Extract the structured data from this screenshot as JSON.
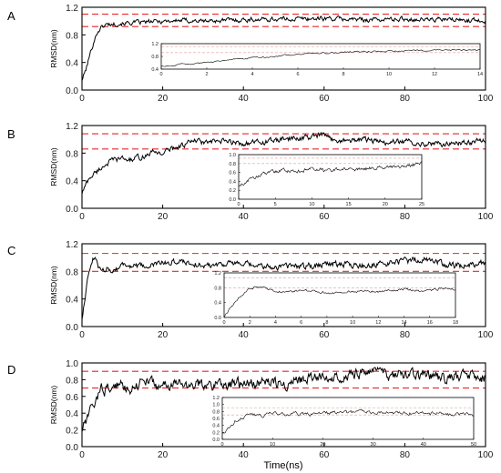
{
  "figure": {
    "x_axis_label": "Time(ns)",
    "colors": {
      "trace": "#000000",
      "threshold": "#e8262a",
      "inset_threshold": "#e79a9a",
      "axis": "#000000",
      "tick_label": "#1a1a1a"
    }
  },
  "chart_data": [
    {
      "panel": "A",
      "type": "line",
      "xlabel": "",
      "ylabel": "RMSD(nm)",
      "xlim": [
        0,
        100
      ],
      "ylim": [
        0,
        1.2
      ],
      "x_ticks": [
        "0",
        "20",
        "40",
        "60",
        "80",
        "100"
      ],
      "y_ticks": [
        "0.0",
        "0.4",
        "0.8",
        "1.2"
      ],
      "thresholds": [
        1.1,
        0.92
      ],
      "trace": {
        "x": [
          0,
          1,
          2,
          3,
          4,
          5,
          6,
          8,
          10,
          15,
          20,
          25,
          30,
          40,
          50,
          60,
          70,
          80,
          90,
          100
        ],
        "y": [
          0.15,
          0.3,
          0.52,
          0.72,
          0.86,
          0.92,
          0.95,
          0.96,
          0.97,
          0.98,
          1.0,
          1.01,
          1.0,
          1.02,
          1.03,
          1.04,
          1.02,
          1.03,
          1.02,
          1.01
        ],
        "noise": 0.025
      },
      "inset": {
        "xlim": [
          0,
          14
        ],
        "ylim": [
          0.4,
          1.2
        ],
        "x_ticks": [
          "0",
          "2",
          "4",
          "6",
          "8",
          "10",
          "12",
          "14"
        ],
        "y_ticks": [
          "0.4",
          "0.8",
          "1.2"
        ],
        "thresholds": [
          1.1,
          0.92
        ],
        "trace": {
          "x": [
            0,
            1,
            2,
            3,
            4,
            5,
            6,
            7,
            8,
            9,
            10,
            11,
            12,
            13,
            14
          ],
          "y": [
            0.48,
            0.55,
            0.6,
            0.68,
            0.75,
            0.8,
            0.87,
            0.9,
            0.92,
            0.95,
            0.96,
            0.98,
            0.99,
            1.0,
            1.0
          ],
          "noise": 0.02
        }
      }
    },
    {
      "panel": "B",
      "type": "line",
      "xlabel": "",
      "ylabel": "RMSD(nm)",
      "xlim": [
        0,
        100
      ],
      "ylim": [
        0,
        1.2
      ],
      "x_ticks": [
        "0",
        "20",
        "40",
        "60",
        "80",
        "100"
      ],
      "y_ticks": [
        "0.0",
        "0.4",
        "0.8",
        "1.2"
      ],
      "thresholds": [
        1.08,
        0.86
      ],
      "trace": {
        "x": [
          0,
          1,
          2,
          4,
          6,
          8,
          10,
          12,
          15,
          18,
          20,
          22,
          25,
          28,
          30,
          35,
          40,
          45,
          50,
          55,
          60,
          62,
          65,
          70,
          75,
          80,
          85,
          90,
          95,
          100
        ],
        "y": [
          0.22,
          0.35,
          0.45,
          0.55,
          0.65,
          0.7,
          0.72,
          0.7,
          0.75,
          0.82,
          0.8,
          0.86,
          0.92,
          0.98,
          0.95,
          0.97,
          0.94,
          0.96,
          1.0,
          1.02,
          1.06,
          1.0,
          0.98,
          1.0,
          0.95,
          0.97,
          0.94,
          0.93,
          0.96,
          0.98
        ],
        "noise": 0.03
      },
      "inset": {
        "xlim": [
          0,
          25
        ],
        "ylim": [
          0,
          1.0
        ],
        "x_ticks": [
          "0",
          "5",
          "10",
          "15",
          "20",
          "25"
        ],
        "y_ticks": [
          "0.0",
          "0.2",
          "0.4",
          "0.6",
          "0.8",
          "1.0"
        ],
        "thresholds": [
          0.92,
          0.8
        ],
        "trace": {
          "x": [
            0,
            1,
            2,
            3,
            4,
            5,
            6,
            8,
            10,
            12,
            14,
            15,
            16,
            18,
            20,
            22,
            24,
            25
          ],
          "y": [
            0.28,
            0.4,
            0.48,
            0.55,
            0.6,
            0.62,
            0.65,
            0.62,
            0.68,
            0.64,
            0.66,
            0.68,
            0.67,
            0.7,
            0.72,
            0.74,
            0.78,
            0.82
          ],
          "noise": 0.03
        }
      }
    },
    {
      "panel": "C",
      "type": "line",
      "xlabel": "",
      "ylabel": "RMSD(nm)",
      "xlim": [
        0,
        100
      ],
      "ylim": [
        0,
        1.2
      ],
      "x_ticks": [
        "0",
        "20",
        "40",
        "60",
        "80",
        "100"
      ],
      "y_ticks": [
        "0.0",
        "0.4",
        "0.8",
        "1.2"
      ],
      "thresholds": [
        1.06,
        0.8
      ],
      "trace": {
        "x": [
          0,
          1,
          2,
          3,
          4,
          5,
          6,
          8,
          10,
          15,
          20,
          25,
          30,
          35,
          40,
          45,
          50,
          55,
          60,
          65,
          70,
          75,
          80,
          85,
          90,
          95,
          100
        ],
        "y": [
          0.12,
          0.55,
          0.85,
          1.0,
          0.88,
          0.78,
          0.85,
          0.82,
          0.9,
          0.86,
          0.92,
          0.95,
          0.88,
          0.92,
          0.9,
          0.86,
          0.88,
          0.87,
          0.92,
          0.9,
          0.88,
          0.91,
          0.95,
          0.98,
          0.9,
          0.88,
          0.92
        ],
        "noise": 0.035
      },
      "inset": {
        "xlim": [
          0,
          18
        ],
        "ylim": [
          0,
          1.2
        ],
        "x_ticks": [
          "0",
          "2",
          "4",
          "6",
          "8",
          "10",
          "12",
          "14",
          "16",
          "18"
        ],
        "y_ticks": [
          "0.0",
          "0.4",
          "0.8",
          "1.2"
        ],
        "thresholds": [
          1.06,
          0.8
        ],
        "trace": {
          "x": [
            0,
            0.5,
            1,
            1.5,
            2,
            2.5,
            3,
            4,
            5,
            6,
            7,
            8,
            9,
            10,
            11,
            12,
            13,
            14,
            15,
            16,
            17,
            18
          ],
          "y": [
            0.02,
            0.25,
            0.48,
            0.62,
            0.78,
            0.82,
            0.8,
            0.72,
            0.68,
            0.74,
            0.7,
            0.66,
            0.68,
            0.7,
            0.72,
            0.7,
            0.74,
            0.76,
            0.72,
            0.74,
            0.78,
            0.75
          ],
          "noise": 0.025
        }
      }
    },
    {
      "panel": "D",
      "type": "line",
      "xlabel": "Time(ns)",
      "ylabel": "RMSD(nm)",
      "xlim": [
        0,
        100
      ],
      "ylim": [
        0,
        1.0
      ],
      "x_ticks": [
        "0",
        "20",
        "40",
        "60",
        "80",
        "100"
      ],
      "y_ticks": [
        "0.0",
        "0.2",
        "0.4",
        "0.6",
        "0.8",
        "1.0"
      ],
      "thresholds": [
        0.9,
        0.7
      ],
      "trace": {
        "x": [
          0,
          1,
          2,
          3,
          4,
          5,
          6,
          8,
          10,
          12,
          14,
          16,
          18,
          20,
          25,
          30,
          35,
          40,
          45,
          50,
          55,
          60,
          65,
          70,
          72,
          75,
          80,
          85,
          90,
          95,
          100
        ],
        "y": [
          0.2,
          0.3,
          0.4,
          0.5,
          0.62,
          0.7,
          0.68,
          0.72,
          0.74,
          0.7,
          0.76,
          0.8,
          0.74,
          0.72,
          0.75,
          0.73,
          0.76,
          0.74,
          0.78,
          0.76,
          0.8,
          0.84,
          0.86,
          0.88,
          0.9,
          0.86,
          0.84,
          0.86,
          0.82,
          0.84,
          0.82
        ],
        "noise": 0.05
      },
      "inset": {
        "xlim": [
          0,
          50
        ],
        "ylim": [
          0,
          1.2
        ],
        "x_ticks": [
          "0",
          "10",
          "20",
          "30",
          "40",
          "50"
        ],
        "y_ticks": [
          "0.0",
          "0.2",
          "0.4",
          "0.6",
          "0.8",
          "1.0",
          "1.2"
        ],
        "thresholds": [
          0.9,
          0.7
        ],
        "trace": {
          "x": [
            0,
            1,
            2,
            3,
            4,
            6,
            8,
            10,
            14,
            18,
            22,
            26,
            30,
            34,
            38,
            42,
            46,
            50
          ],
          "y": [
            0.18,
            0.3,
            0.45,
            0.58,
            0.66,
            0.72,
            0.7,
            0.74,
            0.72,
            0.75,
            0.76,
            0.78,
            0.8,
            0.78,
            0.76,
            0.74,
            0.72,
            0.72
          ],
          "noise": 0.045
        }
      }
    }
  ]
}
